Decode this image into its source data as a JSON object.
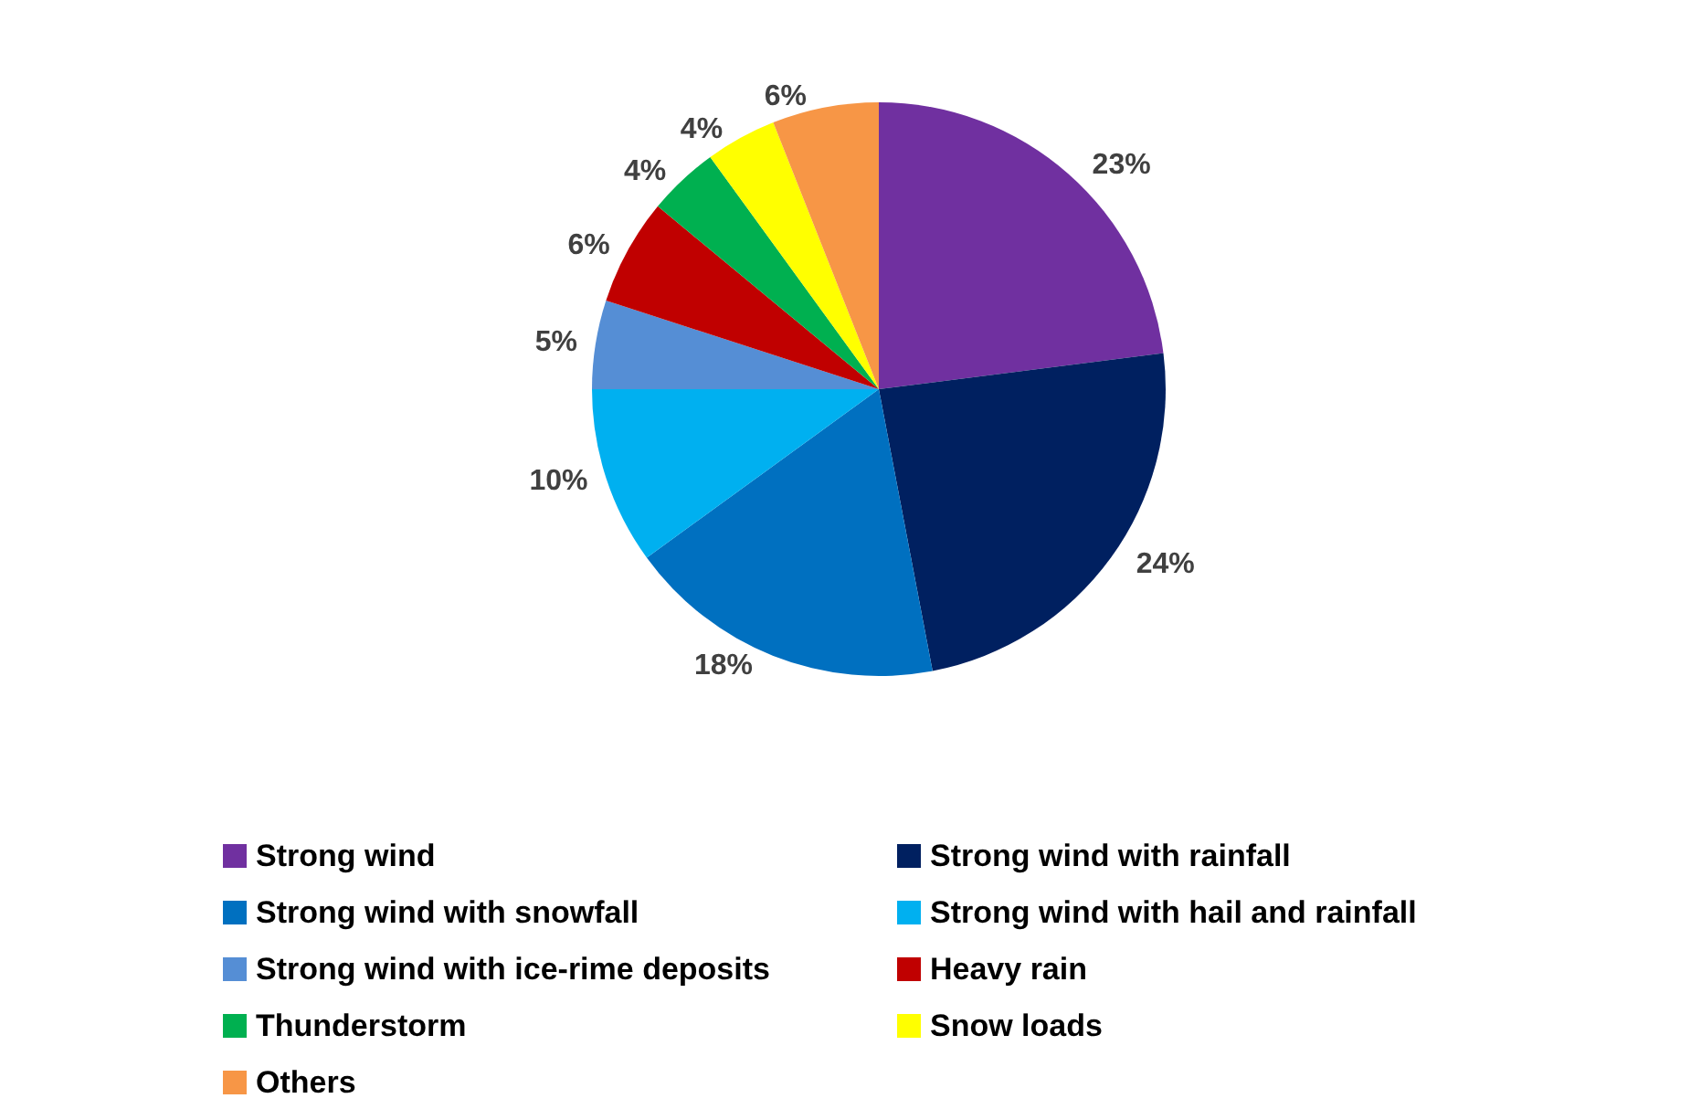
{
  "chart_data": {
    "type": "pie",
    "categories": [
      "Strong wind",
      "Strong wind with rainfall",
      "Strong wind with snowfall",
      "Strong wind with hail and rainfall",
      "Strong wind with ice-rime deposits",
      "Heavy rain",
      "Thunderstorm",
      "Snow loads",
      "Others"
    ],
    "values": [
      23,
      24,
      18,
      10,
      5,
      6,
      4,
      4,
      6
    ],
    "value_labels": [
      "23%",
      "24%",
      "18%",
      "10%",
      "5%",
      "6%",
      "4%",
      "4%",
      "6%"
    ],
    "colors": [
      "#7030a0",
      "#002060",
      "#0070c0",
      "#00b0f0",
      "#558ed5",
      "#c00000",
      "#00b050",
      "#ffff00",
      "#f79646"
    ],
    "legend": "bottom"
  }
}
